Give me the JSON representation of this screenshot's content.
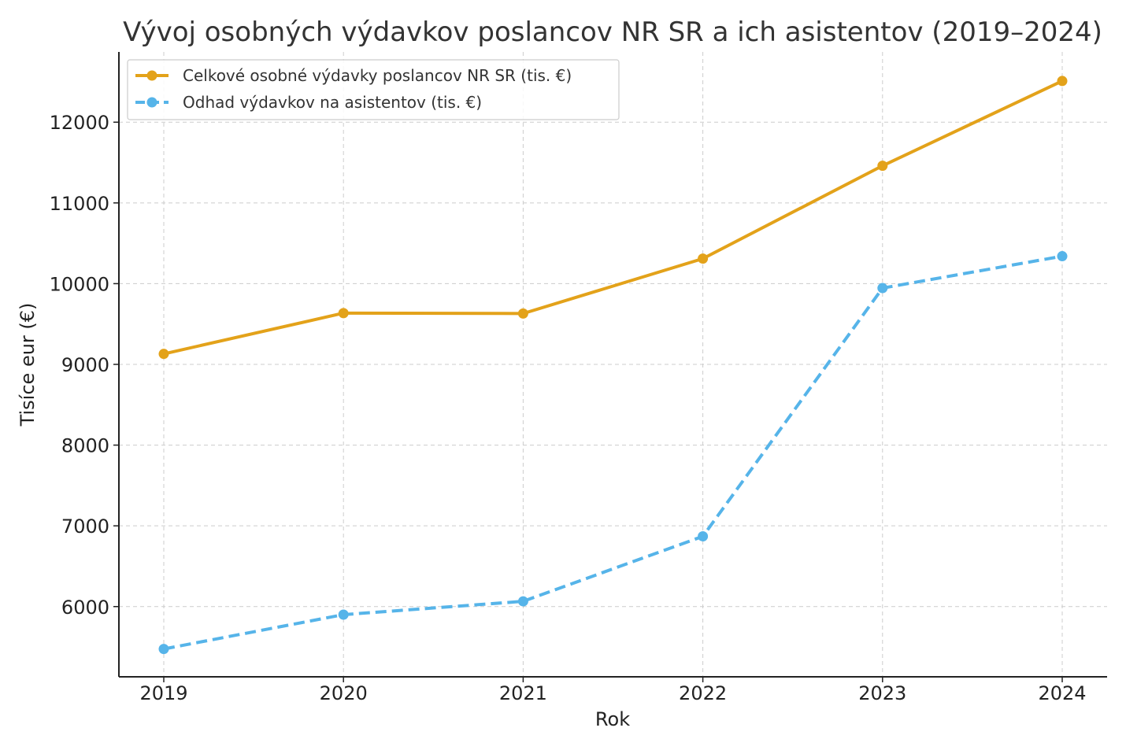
{
  "chart_data": {
    "type": "line",
    "title": "Vývoj osobných výdavkov poslancov NR SR a ich asistentov (2019–2024)",
    "xlabel": "Rok",
    "ylabel": "Tisíce eur (€)",
    "categories": [
      "2019",
      "2020",
      "2021",
      "2022",
      "2023",
      "2024"
    ],
    "ylim": [
      5130,
      12870
    ],
    "yticks": [
      6000,
      7000,
      8000,
      9000,
      10000,
      11000,
      12000
    ],
    "grid": true,
    "legend_position": "top-left",
    "series": [
      {
        "name": "Celkové osobné výdavky poslancov NR SR (tis. €)",
        "values": [
          9130,
          9635,
          9630,
          10310,
          11460,
          12510
        ],
        "color": "#E3A21A",
        "style": "solid"
      },
      {
        "name": "Odhad výdavkov na asistentov (tis. €)",
        "values": [
          5475,
          5900,
          6065,
          6870,
          9945,
          10340
        ],
        "color": "#56B4E9",
        "style": "dashed"
      }
    ]
  }
}
